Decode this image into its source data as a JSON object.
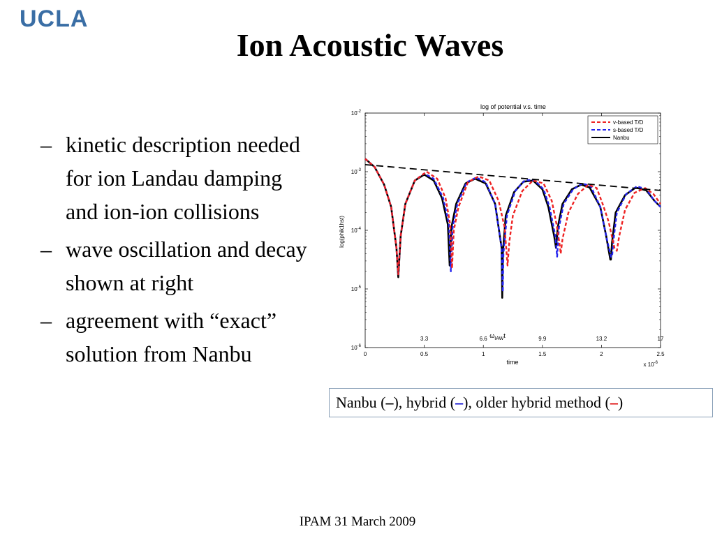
{
  "logo": "UCLA",
  "title": "Ion Acoustic Waves",
  "bullets": [
    {
      "dash": "–",
      "text": "kinetic description needed for ion Landau damping and ion-ion collisions"
    },
    {
      "dash": "–",
      "text": "wave oscillation and decay shown at right"
    },
    {
      "dash": "–",
      "text": "agreement with “exact” solution from Nanbu"
    }
  ],
  "caption": {
    "part1": "Nanbu (",
    "dash1": "–",
    "part2": "), hybrid (",
    "dash2": "–",
    "part3": "), older hybrid method (",
    "dash3": "–",
    "part4": ")",
    "colors": {
      "nanbu": "#000000",
      "hybrid": "#0000cc",
      "older": "#dd0000"
    }
  },
  "footer": "IPAM 31 March 2009",
  "chart_data": {
    "type": "line",
    "title": "log of potential v.s. time",
    "xlabel": "time",
    "ylabel": "log(phik1hst)",
    "x_multiplier_label": "x 10",
    "x_multiplier_exp": "-6",
    "xlim": [
      0,
      2.5
    ],
    "ylim_log10": [
      -6,
      -2
    ],
    "y_scale": "log",
    "xticks": [
      0,
      0.5,
      1,
      1.5,
      2,
      2.5
    ],
    "xtick_labels": [
      "0",
      "0.5",
      "1",
      "1.5",
      "2",
      "2.5"
    ],
    "yticks_log10": [
      -2,
      -3,
      -4,
      -5,
      -6
    ],
    "ytick_base": "10",
    "ytick_exps": [
      "-2",
      "-3",
      "-4",
      "-5",
      "-6"
    ],
    "secondary_xlabel": "ω",
    "secondary_xlabel_sub": "IAW",
    "secondary_xlabel_suffix": "t",
    "secondary_xticks": [
      0.5,
      1,
      2,
      2.5
    ],
    "secondary_xtick_labels": [
      "3.3",
      "6.6",
      "13.2",
      "17"
    ],
    "secondary_xtick_extra": {
      "x": 1.5,
      "label": "9.9"
    },
    "legend": {
      "placement": "top-right",
      "entries": [
        {
          "label": "v-based T/D",
          "color": "#ee2222",
          "style": "dashed"
        },
        {
          "label": "s-based T/D",
          "color": "#2222ee",
          "style": "dashed"
        },
        {
          "label": "Nanbu",
          "color": "#000000",
          "style": "solid"
        }
      ]
    },
    "envelope": {
      "x": [
        0,
        2.5
      ],
      "y_log10": [
        -2.88,
        -3.32
      ],
      "color": "#000000",
      "style": "dashed"
    },
    "series": [
      {
        "name": "Nanbu",
        "color": "#000000",
        "style": "solid",
        "x": [
          0,
          0.08,
          0.16,
          0.22,
          0.265,
          0.28,
          0.3,
          0.34,
          0.42,
          0.5,
          0.58,
          0.65,
          0.7,
          0.715,
          0.73,
          0.77,
          0.85,
          0.93,
          1.02,
          1.1,
          1.155,
          1.16,
          1.165,
          1.19,
          1.26,
          1.34,
          1.42,
          1.5,
          1.55,
          1.6,
          1.615,
          1.63,
          1.67,
          1.75,
          1.83,
          1.9,
          1.99,
          2.04,
          2.075,
          2.08,
          2.09,
          2.12,
          2.2,
          2.29,
          2.38,
          2.45,
          2.5
        ],
        "y_log10": [
          -2.78,
          -2.92,
          -3.22,
          -3.6,
          -4.3,
          -4.8,
          -4.1,
          -3.55,
          -3.15,
          -3.05,
          -3.15,
          -3.45,
          -3.9,
          -4.6,
          -3.95,
          -3.55,
          -3.2,
          -3.12,
          -3.2,
          -3.55,
          -4.3,
          -5.15,
          -4.4,
          -3.75,
          -3.35,
          -3.17,
          -3.15,
          -3.3,
          -3.6,
          -4.1,
          -4.3,
          -3.95,
          -3.55,
          -3.3,
          -3.22,
          -3.27,
          -3.6,
          -4.1,
          -4.5,
          -4.5,
          -4.2,
          -3.7,
          -3.4,
          -3.27,
          -3.32,
          -3.5,
          -3.6
        ]
      },
      {
        "name": "s-based T/D",
        "color": "#2222ee",
        "style": "dashed",
        "x": [
          0,
          0.08,
          0.16,
          0.22,
          0.265,
          0.28,
          0.3,
          0.34,
          0.42,
          0.5,
          0.58,
          0.66,
          0.71,
          0.725,
          0.74,
          0.78,
          0.86,
          0.94,
          1.02,
          1.1,
          1.155,
          1.165,
          1.17,
          1.2,
          1.27,
          1.35,
          1.43,
          1.51,
          1.56,
          1.61,
          1.625,
          1.64,
          1.68,
          1.76,
          1.84,
          1.91,
          1.99,
          2.04,
          2.08,
          2.09,
          2.1,
          2.13,
          2.21,
          2.3,
          2.38,
          2.45,
          2.5
        ],
        "y_log10": [
          -2.78,
          -2.92,
          -3.22,
          -3.6,
          -4.3,
          -4.75,
          -4.1,
          -3.55,
          -3.15,
          -3.03,
          -3.12,
          -3.45,
          -3.9,
          -4.7,
          -3.95,
          -3.55,
          -3.18,
          -3.1,
          -3.18,
          -3.55,
          -4.3,
          -5.05,
          -4.4,
          -3.75,
          -3.33,
          -3.15,
          -3.14,
          -3.3,
          -3.6,
          -4.1,
          -4.45,
          -3.95,
          -3.55,
          -3.3,
          -3.2,
          -3.25,
          -3.6,
          -4.1,
          -4.45,
          -4.45,
          -4.2,
          -3.7,
          -3.38,
          -3.25,
          -3.3,
          -3.5,
          -3.6
        ]
      },
      {
        "name": "v-based T/D",
        "color": "#ee2222",
        "style": "dashed",
        "x": [
          0,
          0.08,
          0.16,
          0.22,
          0.265,
          0.28,
          0.3,
          0.34,
          0.42,
          0.52,
          0.61,
          0.68,
          0.72,
          0.735,
          0.75,
          0.79,
          0.87,
          0.96,
          1.05,
          1.13,
          1.18,
          1.205,
          1.22,
          1.25,
          1.33,
          1.42,
          1.51,
          1.58,
          1.62,
          1.65,
          1.655,
          1.67,
          1.72,
          1.8,
          1.89,
          1.96,
          2.01,
          2.06,
          2.11,
          2.13,
          2.15,
          2.2,
          2.28,
          2.37,
          2.44,
          2.5
        ],
        "y_log10": [
          -2.78,
          -2.92,
          -3.22,
          -3.6,
          -4.3,
          -4.75,
          -4.1,
          -3.55,
          -3.15,
          -3.0,
          -3.12,
          -3.45,
          -3.9,
          -4.65,
          -4.0,
          -3.6,
          -3.18,
          -3.08,
          -3.15,
          -3.5,
          -3.95,
          -4.6,
          -4.2,
          -3.75,
          -3.33,
          -3.15,
          -3.2,
          -3.5,
          -3.9,
          -4.3,
          -4.4,
          -4.15,
          -3.7,
          -3.38,
          -3.22,
          -3.28,
          -3.55,
          -3.85,
          -4.3,
          -4.35,
          -4.1,
          -3.65,
          -3.36,
          -3.28,
          -3.38,
          -3.55
        ]
      }
    ]
  }
}
